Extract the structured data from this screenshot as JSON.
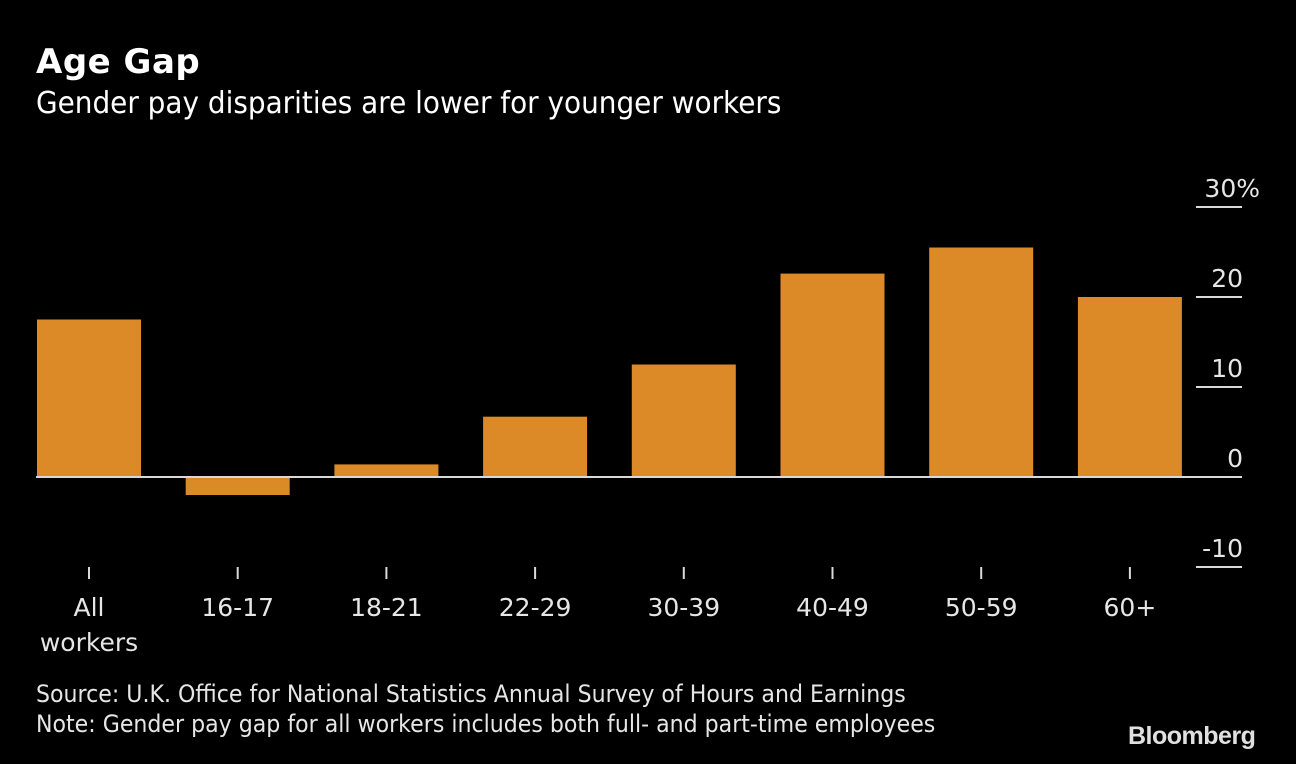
{
  "header": {
    "title": "Age Gap",
    "subtitle": "Gender pay disparities are lower for younger workers"
  },
  "footer": {
    "source": "Source: U.K. Office for National Statistics Annual Survey of Hours and Earnings",
    "note": "Note: Gender pay gap for all workers includes both full- and part-time employees",
    "brand": "Bloomberg"
  },
  "colors": {
    "bar": "#dc8a27",
    "background": "#000000",
    "axis": "#d9d9d9",
    "text": "#e6e6e6"
  },
  "chart_data": {
    "type": "bar",
    "title": "Age Gap",
    "subtitle": "Gender pay disparities are lower for younger workers",
    "xlabel": "",
    "ylabel": "",
    "categories": [
      "All workers",
      "16-17",
      "18-21",
      "22-29",
      "30-39",
      "40-49",
      "50-59",
      "60+"
    ],
    "category_lines": [
      [
        "All",
        "workers"
      ],
      [
        "16-17"
      ],
      [
        "18-21"
      ],
      [
        "22-29"
      ],
      [
        "30-39"
      ],
      [
        "40-49"
      ],
      [
        "50-59"
      ],
      [
        "60+"
      ]
    ],
    "values": [
      17.5,
      -2.0,
      1.4,
      6.7,
      12.5,
      22.6,
      25.5,
      20.0
    ],
    "unit": "%",
    "ylim": [
      -10,
      30
    ],
    "yticks": [
      30,
      20,
      10,
      0,
      -10
    ],
    "ytick_labels": [
      "30%",
      "20",
      "10",
      "0",
      "-10"
    ],
    "y_axis_position": "right",
    "grid": false,
    "legend": "none"
  }
}
